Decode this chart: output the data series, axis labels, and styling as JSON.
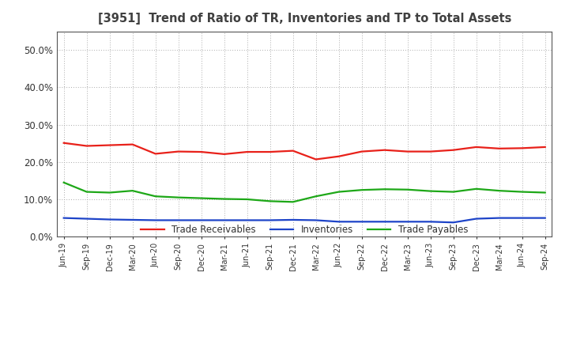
{
  "title": "[3951]  Trend of Ratio of TR, Inventories and TP to Total Assets",
  "x_labels": [
    "Jun-19",
    "Sep-19",
    "Dec-19",
    "Mar-20",
    "Jun-20",
    "Sep-20",
    "Dec-20",
    "Mar-21",
    "Jun-21",
    "Sep-21",
    "Dec-21",
    "Mar-22",
    "Jun-22",
    "Sep-22",
    "Dec-22",
    "Mar-23",
    "Jun-23",
    "Sep-23",
    "Dec-23",
    "Mar-24",
    "Jun-24",
    "Sep-24"
  ],
  "trade_receivables": [
    0.251,
    0.243,
    0.245,
    0.247,
    0.222,
    0.228,
    0.227,
    0.221,
    0.227,
    0.227,
    0.23,
    0.207,
    0.215,
    0.228,
    0.232,
    0.228,
    0.228,
    0.232,
    0.24,
    0.236,
    0.237,
    0.24
  ],
  "inventories": [
    0.05,
    0.048,
    0.046,
    0.045,
    0.044,
    0.044,
    0.044,
    0.044,
    0.044,
    0.044,
    0.045,
    0.044,
    0.04,
    0.04,
    0.04,
    0.04,
    0.04,
    0.038,
    0.048,
    0.05,
    0.05,
    0.05
  ],
  "trade_payables": [
    0.145,
    0.12,
    0.118,
    0.123,
    0.108,
    0.105,
    0.103,
    0.101,
    0.1,
    0.095,
    0.093,
    0.108,
    0.12,
    0.125,
    0.127,
    0.126,
    0.122,
    0.12,
    0.128,
    0.123,
    0.12,
    0.118
  ],
  "tr_color": "#e8211a",
  "inv_color": "#1e44c8",
  "tp_color": "#1ea818",
  "ylim": [
    0.0,
    0.55
  ],
  "yticks": [
    0.0,
    0.1,
    0.2,
    0.3,
    0.4,
    0.5
  ],
  "background_color": "#ffffff",
  "grid_color": "#aaaaaa",
  "title_color": "#404040",
  "legend_labels": [
    "Trade Receivables",
    "Inventories",
    "Trade Payables"
  ]
}
